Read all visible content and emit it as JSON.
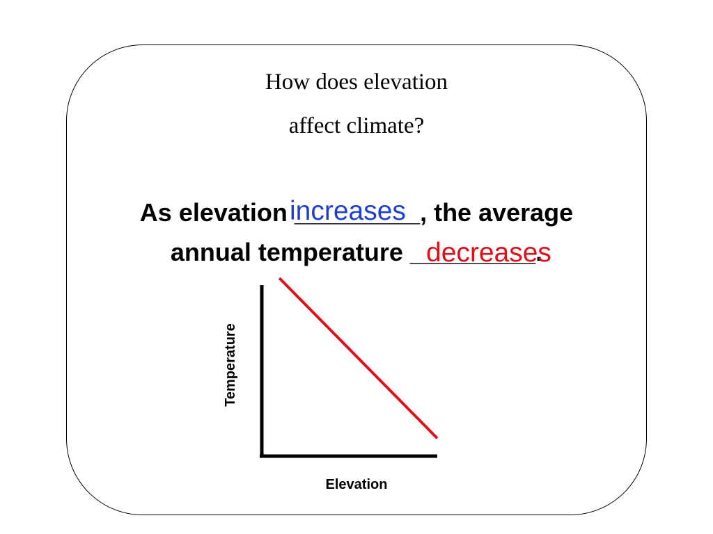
{
  "slide": {
    "title_line1": "How does elevation",
    "title_line2": "affect climate?",
    "statement_line1": "As elevation _________, the average",
    "statement_line2": "annual temperature _________.",
    "answer1": "increases",
    "answer2": "decreases",
    "answer1_color": "#1f3fd4",
    "answer2_color": "#e10f1a"
  },
  "chart_data": {
    "type": "line",
    "title": "",
    "xlabel": "Elevation",
    "ylabel": "Temperature",
    "series": [
      {
        "color": "#e10f1a",
        "x": [
          0.1,
          1.0
        ],
        "y": [
          1.0,
          0.1
        ]
      }
    ],
    "xlim": [
      0,
      1
    ],
    "ylim": [
      0,
      1
    ],
    "grid": false,
    "legend": "none"
  }
}
